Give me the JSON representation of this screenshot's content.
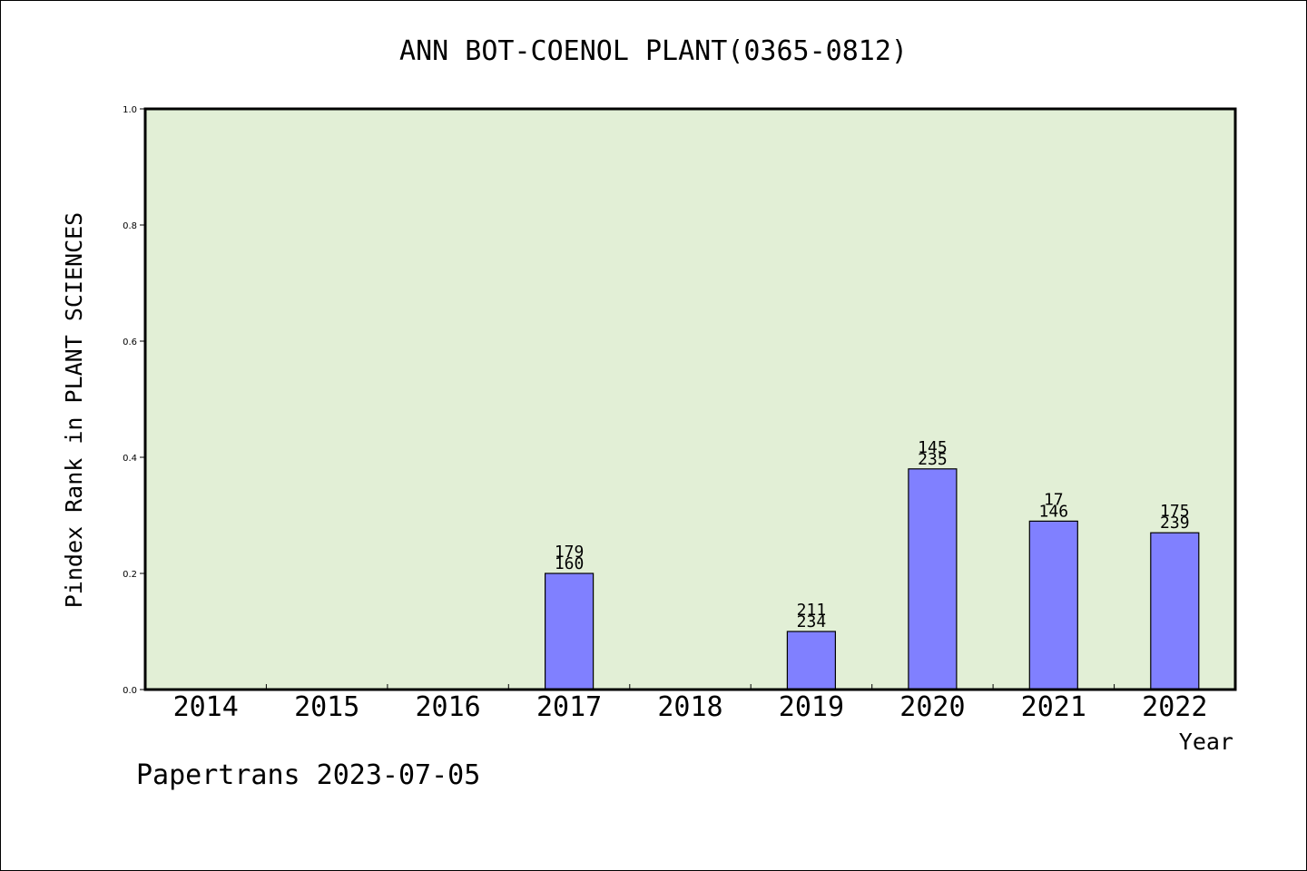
{
  "chart_data": {
    "type": "bar",
    "title": "ANN BOT-COENOL PLANT(0365-0812)",
    "xlabel": "Year",
    "ylabel": "Pindex Rank in PLANT SCIENCES",
    "ylim": [
      0,
      1.0
    ],
    "yticks": [
      "0.0",
      "0.2",
      "0.4",
      "0.6",
      "0.8",
      "1.0"
    ],
    "categories": [
      "2014",
      "2015",
      "2016",
      "2017",
      "2018",
      "2019",
      "2020",
      "2021",
      "2022"
    ],
    "values": [
      null,
      null,
      null,
      0.2,
      null,
      0.1,
      0.38,
      0.29,
      0.27
    ],
    "label_top": [
      "",
      "",
      "",
      "179",
      "",
      "211",
      "145",
      "17",
      "175"
    ],
    "label_bottom": [
      "",
      "",
      "",
      "160",
      "",
      "234",
      "235",
      "146",
      "239"
    ],
    "grid": false,
    "colors": {
      "plot_bg": "#e2efd6",
      "bar": "#8080ff",
      "bar_edge": "#000000"
    }
  },
  "footer": "Papertrans 2023-07-05"
}
